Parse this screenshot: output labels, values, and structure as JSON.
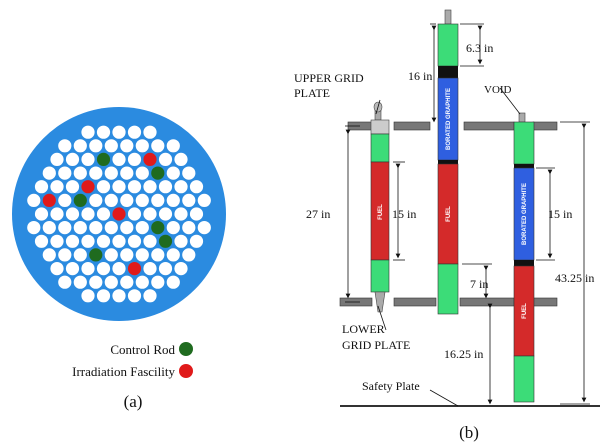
{
  "core_map": {
    "legend": {
      "control_rod": "Control Rod",
      "irradiation": "Irradiation Fascility"
    },
    "caption": "(a)",
    "colors": {
      "pool": "#2b8be0",
      "cell": "#ffffff",
      "control": "#1f6b1f",
      "irradiation": "#e01a1a"
    }
  },
  "rod_diagram": {
    "caption": "(b)",
    "labels": {
      "upper_grid_1": "UPPER GRID",
      "upper_grid_2": "PLATE",
      "lower_grid_1": "LOWER",
      "lower_grid_2": "GRID PLATE",
      "safety_plate": "Safety Plate",
      "void": "VOID",
      "fuel": "FUEL",
      "graphite": "BORATED GRAPHITE"
    },
    "dimensions": {
      "d_63": "6.3  in",
      "d_16": "16 in",
      "d_27": "27 in",
      "d_15a": "15 in",
      "d_15b": "15 in",
      "d_7": "7 in",
      "d_4325": "43.25 in",
      "d_1625": "16.25 in"
    },
    "colors": {
      "fuel": "#d42a2a",
      "follower": "#3cdc78",
      "graphite": "#2f5fe0",
      "void": "#111111",
      "grid": "#777777"
    }
  }
}
